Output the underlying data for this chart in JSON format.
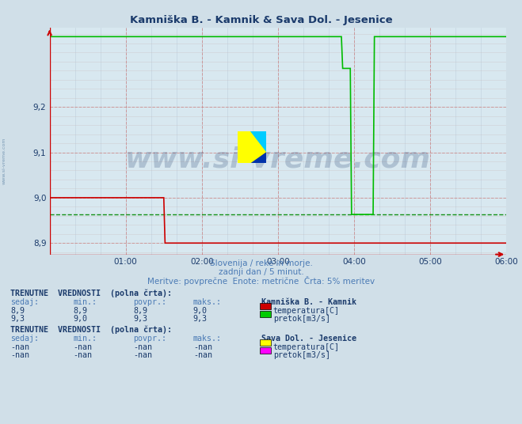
{
  "title": "Kamniška B. - Kamnik & Sava Dol. - Jesenice",
  "title_color": "#1a3a6b",
  "bg_color": "#d0dfe8",
  "plot_bg_color": "#d8e8f0",
  "ylim": [
    8.875,
    9.375
  ],
  "yticks": [
    8.9,
    9.0,
    9.1,
    9.2
  ],
  "xlim": [
    0,
    360
  ],
  "xtick_positions": [
    60,
    120,
    180,
    240,
    300,
    360
  ],
  "xtick_labels": [
    "01:00",
    "02:00",
    "03:00",
    "04:00",
    "05:00",
    "06:00"
  ],
  "tick_color": "#1a3a6b",
  "subtitle1": "Slovenija / reke in morje.",
  "subtitle2": "zadnji dan / 5 minut.",
  "subtitle3": "Meritve: povprečne  Enote: metrične  Črta: 5% meritev",
  "subtitle_color": "#4a7ab5",
  "watermark": "www.si-vreme.com",
  "watermark_color": "#1a3a6b",
  "red_line_color": "#cc0000",
  "green_line_color": "#00bb00",
  "dashed_line_color": "#008800",
  "dashed_line_value": 8.963,
  "table_header_color": "#1a3a6b",
  "table_value_color": "#1a3a6b",
  "table_label_color": "#4a7ab5",
  "legend_rect1_color": "#cc0000",
  "legend_rect2_color": "#00cc00",
  "legend_rect3_color": "#ffff00",
  "legend_rect4_color": "#ff00ff",
  "red_x": [
    0,
    90,
    91,
    360
  ],
  "red_y": [
    9.0,
    9.0,
    8.9,
    8.9
  ],
  "green_x": [
    0,
    230,
    231,
    237,
    238,
    255,
    256,
    360
  ],
  "green_y": [
    9.355,
    9.355,
    9.285,
    9.285,
    8.963,
    8.963,
    9.355,
    9.355
  ]
}
